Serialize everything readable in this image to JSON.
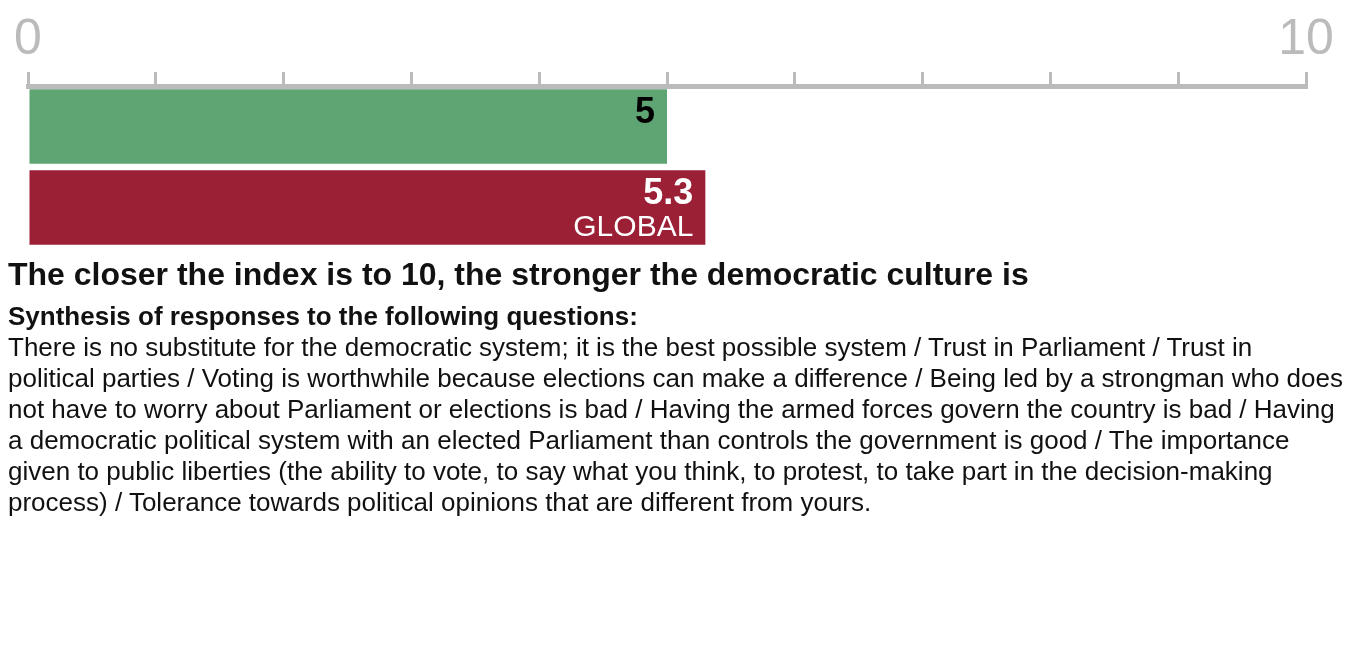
{
  "chart_data": {
    "type": "bar",
    "orientation": "horizontal",
    "title": "The closer the index is to 10, the stronger the democratic culture is",
    "subtitle": "Synthesis of responses to the following questions:",
    "annotations": [
      "There is no substitute for the democratic system; it is the best possible system / Trust in Parliament / Trust in political parties / Voting is worthwhile because elections can make a difference / Being led by a strongman who does not have to worry about Parliament or elections is bad / Having the armed forces govern the country is bad / Having a democratic political system with an elected Parliament than controls the government is good / The importance given to public liberties (the ability to vote, to say what you think, to protest, to take part in the decision-making process) / Tolerance towards political opinions that are different from yours."
    ],
    "categories": [
      null,
      "GLOBAL"
    ],
    "values": [
      5,
      5.3
    ],
    "colors": [
      "#5fa574",
      "#9b1f35"
    ],
    "data_labels": true,
    "xlim": [
      0,
      10
    ],
    "xticks": [
      0,
      {
        "value": 1,
        "label": null
      },
      {
        "value": 2,
        "label": null
      },
      {
        "value": 3,
        "label": null
      },
      {
        "value": 4,
        "label": null
      },
      {
        "value": 5,
        "label": null
      },
      {
        "value": 6,
        "label": null
      },
      {
        "value": 7,
        "label": null
      },
      {
        "value": 8,
        "label": null
      },
      {
        "value": 9,
        "label": null
      },
      10
    ],
    "grid": false,
    "legend": false
  }
}
